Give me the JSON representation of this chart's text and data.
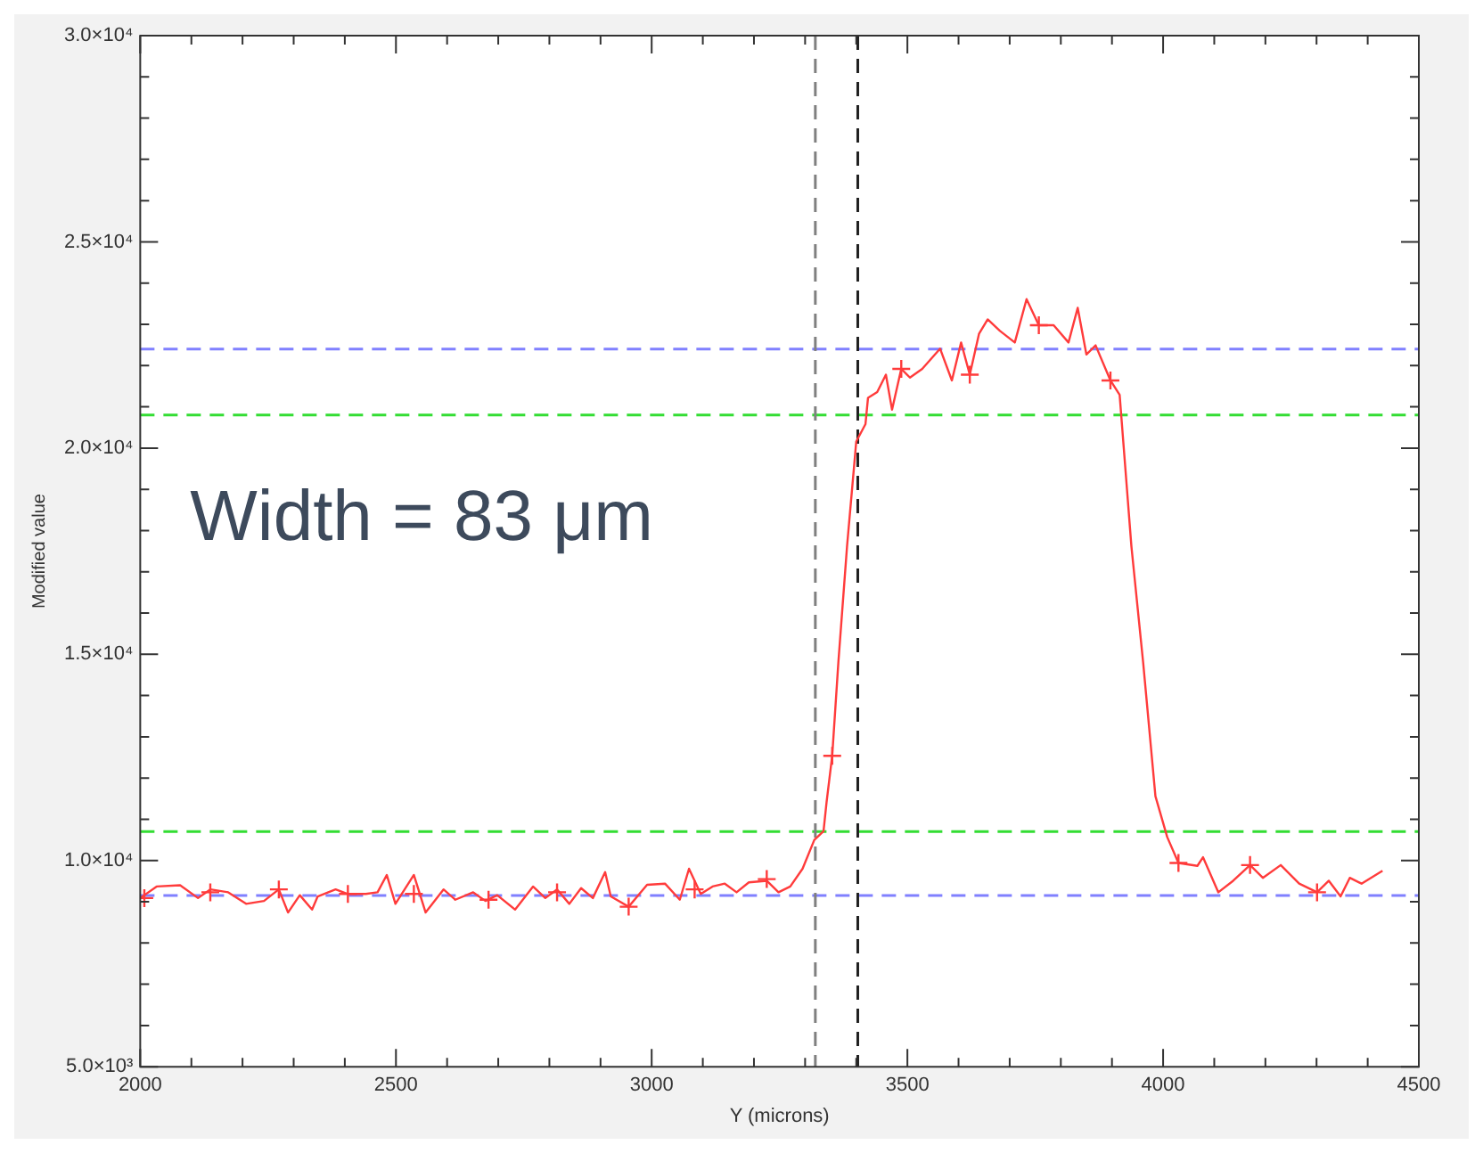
{
  "chart_data": {
    "type": "line",
    "xlabel": "Y (microns)",
    "ylabel": "Modified value",
    "annotations": [
      "Width = 83 μm"
    ],
    "xlim": [
      2000,
      4500
    ],
    "xticks": [
      2000,
      {
        "value": 2100,
        "label": null
      },
      {
        "value": 2200,
        "label": null
      },
      {
        "value": 2300,
        "label": null
      },
      {
        "value": 2400,
        "label": null
      },
      2500,
      {
        "value": 2600,
        "label": null
      },
      {
        "value": 2700,
        "label": null
      },
      {
        "value": 2800,
        "label": null
      },
      {
        "value": 2900,
        "label": null
      },
      3000,
      {
        "value": 3100,
        "label": null
      },
      {
        "value": 3200,
        "label": null
      },
      {
        "value": 3300,
        "label": null
      },
      {
        "value": 3400,
        "label": null
      },
      3500,
      {
        "value": 3600,
        "label": null
      },
      {
        "value": 3700,
        "label": null
      },
      {
        "value": 3800,
        "label": null
      },
      {
        "value": 3900,
        "label": null
      },
      4000,
      {
        "value": 4100,
        "label": null
      },
      {
        "value": 4200,
        "label": null
      },
      {
        "value": 4300,
        "label": null
      },
      {
        "value": 4400,
        "label": null
      },
      4500
    ],
    "ylim": [
      5000,
      30000
    ],
    "yticks": [
      {
        "value": 5000,
        "label": "5.0×10³"
      },
      {
        "value": 6000,
        "label": null
      },
      {
        "value": 7000,
        "label": null
      },
      {
        "value": 8000,
        "label": null
      },
      {
        "value": 9000,
        "label": null
      },
      {
        "value": 10000,
        "label": "1.0×10⁴"
      },
      {
        "value": 11000,
        "label": null
      },
      {
        "value": 12000,
        "label": null
      },
      {
        "value": 13000,
        "label": null
      },
      {
        "value": 14000,
        "label": null
      },
      {
        "value": 15000,
        "label": "1.5×10⁴"
      },
      {
        "value": 16000,
        "label": null
      },
      {
        "value": 17000,
        "label": null
      },
      {
        "value": 18000,
        "label": null
      },
      {
        "value": 19000,
        "label": null
      },
      {
        "value": 20000,
        "label": "2.0×10⁴"
      },
      {
        "value": 21000,
        "label": null
      },
      {
        "value": 22000,
        "label": null
      },
      {
        "value": 23000,
        "label": null
      },
      {
        "value": 24000,
        "label": null
      },
      {
        "value": 25000,
        "label": "2.5×10⁴"
      },
      {
        "value": 26000,
        "label": null
      },
      {
        "value": 27000,
        "label": null
      },
      {
        "value": 28000,
        "label": null
      },
      {
        "value": 29000,
        "label": null
      },
      {
        "value": 30000,
        "label": "3.0×10⁴"
      }
    ],
    "grid": false,
    "legend": false,
    "ref_lines": [
      {
        "axis": "y",
        "value": 22400,
        "color": "#8080ff",
        "line_style": "dashed"
      },
      {
        "axis": "y",
        "value": 20800,
        "color": "#33dd33",
        "line_style": "dashed"
      },
      {
        "axis": "y",
        "value": 10700,
        "color": "#33dd33",
        "line_style": "dashed"
      },
      {
        "axis": "y",
        "value": 9150,
        "color": "#8080ff",
        "line_style": "dashed"
      },
      {
        "axis": "x",
        "value": 3320,
        "color": "#808080",
        "line_style": "dashed"
      },
      {
        "axis": "x",
        "value": 3403,
        "color": "#202020",
        "line_style": "dashed"
      }
    ],
    "series": [
      {
        "color": "#ff3b3b",
        "marker": "none",
        "x": [
          2000,
          2032,
          2078,
          2113,
          2137,
          2172,
          2207,
          2242,
          2271,
          2289,
          2312,
          2336,
          2347,
          2382,
          2406,
          2441,
          2464,
          2482,
          2499,
          2535,
          2558,
          2593,
          2616,
          2651,
          2675,
          2698,
          2733,
          2768,
          2792,
          2815,
          2839,
          2862,
          2885,
          2909,
          2920,
          2955,
          2991,
          3026,
          3055,
          3073,
          3096,
          3119,
          3143,
          3166,
          3190,
          3225,
          3248,
          3271,
          3295,
          3318,
          3336,
          3342,
          3353,
          3365,
          3382,
          3400,
          3418,
          3423,
          3441,
          3458,
          3470,
          3488,
          3505,
          3529,
          3564,
          3587,
          3605,
          3622,
          3640,
          3657,
          3681,
          3710,
          3733,
          3757,
          3786,
          3815,
          3833,
          3850,
          3868,
          3897,
          3915,
          3938,
          3961,
          3985,
          4008,
          4030,
          4067,
          4078,
          4108,
          4137,
          4170,
          4195,
          4230,
          4266,
          4301,
          4324,
          4347,
          4365,
          4388,
          4429
        ],
        "values": [
          9090,
          9370,
          9400,
          9090,
          9300,
          9230,
          8950,
          9020,
          9300,
          8740,
          9160,
          8810,
          9130,
          9300,
          9190,
          9190,
          9230,
          9650,
          8950,
          9650,
          8740,
          9300,
          9050,
          9230,
          9020,
          9160,
          8810,
          9370,
          9090,
          9300,
          8950,
          9330,
          9090,
          9720,
          9130,
          8880,
          9410,
          9440,
          9050,
          9800,
          9190,
          9370,
          9440,
          9230,
          9470,
          9510,
          9230,
          9370,
          9800,
          10500,
          10710,
          11420,
          12540,
          14800,
          17620,
          20160,
          20580,
          21220,
          21360,
          21780,
          20930,
          21920,
          21710,
          21920,
          22410,
          21640,
          22560,
          21780,
          22770,
          23120,
          22840,
          22560,
          23610,
          22980,
          22980,
          22560,
          23400,
          22270,
          22490,
          21640,
          21290,
          17620,
          14800,
          11560,
          10570,
          9940,
          9870,
          10080,
          9230,
          9510,
          9890,
          9580,
          9890,
          9440,
          9230,
          9510,
          9130,
          9580,
          9440,
          9750
        ]
      },
      {
        "type": "scatter",
        "color": "#ff3b3b",
        "marker": "cross",
        "x": [
          2008,
          2137,
          2271,
          2406,
          2535,
          2681,
          2815,
          2955,
          3084,
          3225,
          3353,
          3488,
          3622,
          3757,
          3897,
          4030,
          4170,
          4301
        ],
        "values": [
          9090,
          9230,
          9300,
          9190,
          9190,
          9050,
          9230,
          8880,
          9300,
          9550,
          12540,
          21920,
          21780,
          22980,
          21640,
          9940,
          9890,
          9230
        ]
      }
    ]
  }
}
